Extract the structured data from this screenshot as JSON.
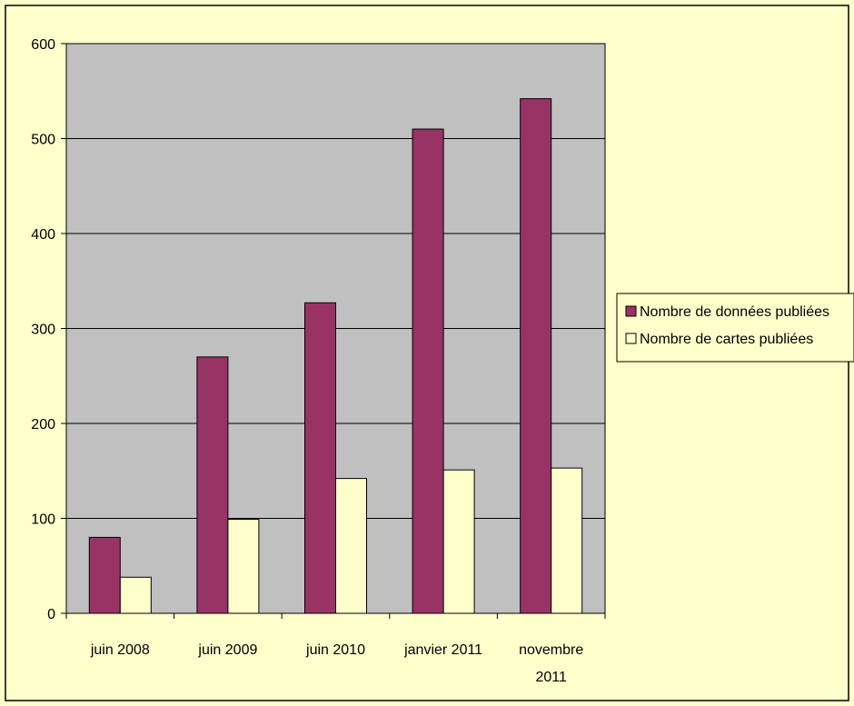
{
  "chart_data": {
    "type": "bar",
    "title": "",
    "xlabel": "",
    "ylabel": "",
    "categories": [
      [
        "juin 2008"
      ],
      [
        "juin 2009"
      ],
      [
        "juin 2010"
      ],
      [
        "janvier 2011"
      ],
      [
        "novembre",
        "2011"
      ]
    ],
    "series": [
      {
        "name": "Nombre de données publiées",
        "color": "#993366",
        "values": [
          80,
          270,
          327,
          510,
          542
        ]
      },
      {
        "name": "Nombre de cartes publiées",
        "color": "#ffffcc",
        "values": [
          38,
          99,
          142,
          151,
          153
        ]
      }
    ],
    "ylim": [
      0,
      600
    ],
    "yticks": [
      0,
      100,
      200,
      300,
      400,
      500,
      600
    ],
    "grid": true,
    "legend": "right",
    "colors": {
      "page_background": "#ffffcc",
      "plot_background": "#c0c0c0",
      "border": "#000000"
    }
  }
}
